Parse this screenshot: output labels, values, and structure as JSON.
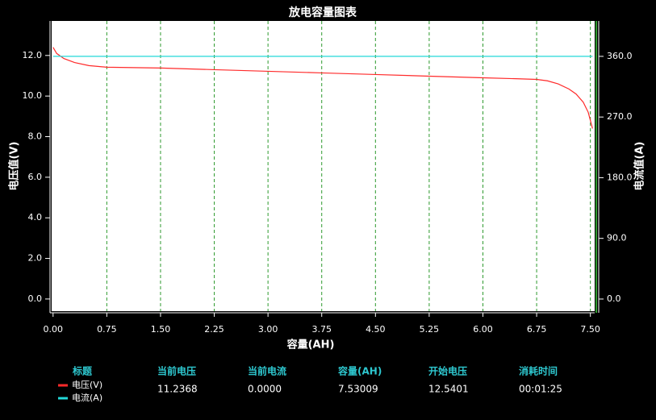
{
  "chart_data": {
    "type": "line",
    "title": "放电容量图表",
    "x_label": "容量(AH)",
    "y_label": "电压值(V)",
    "y2_label": "电流值(A)",
    "xlim": [
      -0.02,
      7.56
    ],
    "ylim": [
      -0.6,
      13.7
    ],
    "y2lim": [
      -18,
      412.5
    ],
    "xticks": [
      {
        "value": 0,
        "label": "0.00"
      },
      {
        "value": 0.75,
        "label": "0.75"
      },
      {
        "value": 1.5,
        "label": "1.50"
      },
      {
        "value": 2.25,
        "label": "2.25"
      },
      {
        "value": 3,
        "label": "3.00"
      },
      {
        "value": 3.75,
        "label": "3.75"
      },
      {
        "value": 4.5,
        "label": "4.50"
      },
      {
        "value": 5.25,
        "label": "5.25"
      },
      {
        "value": 6,
        "label": "6.00"
      },
      {
        "value": 6.75,
        "label": "6.75"
      },
      {
        "value": 7.5,
        "label": "7.50"
      }
    ],
    "yticks": [
      {
        "value": 0,
        "label": "0.0"
      },
      {
        "value": 2,
        "label": "2.0"
      },
      {
        "value": 4,
        "label": "4.0"
      },
      {
        "value": 6,
        "label": "6.0"
      },
      {
        "value": 8,
        "label": "8.0"
      },
      {
        "value": 10,
        "label": "10.0"
      },
      {
        "value": 12,
        "label": "12.0"
      }
    ],
    "y2ticks": [
      {
        "value": 0,
        "label": "0.0"
      },
      {
        "value": 90,
        "label": "90.0"
      },
      {
        "value": 180,
        "label": "180.0"
      },
      {
        "value": 270,
        "label": "270.0"
      },
      {
        "value": 360,
        "label": "360.0"
      }
    ],
    "grid": true,
    "grid_color": "#2e9a2e",
    "series": [
      {
        "name": "电压(V)",
        "color": "#ff2a2a",
        "x": [
          0,
          0.05,
          0.15,
          0.3,
          0.5,
          0.75,
          1.5,
          2.25,
          3.0,
          3.75,
          4.5,
          5.25,
          6.0,
          6.5,
          6.75,
          6.9,
          7.05,
          7.2,
          7.3,
          7.4,
          7.47,
          7.53
        ],
        "values": [
          12.4,
          12.1,
          11.85,
          11.65,
          11.5,
          11.42,
          11.38,
          11.3,
          11.22,
          11.14,
          11.06,
          10.98,
          10.9,
          10.85,
          10.82,
          10.75,
          10.6,
          10.35,
          10.1,
          9.7,
          9.2,
          8.4
        ]
      },
      {
        "name": "电流(A)",
        "color": "#22d8d8",
        "axis": "y2",
        "x": [
          0,
          7.53
        ],
        "values": [
          360,
          360
        ]
      }
    ]
  },
  "info": {
    "legend_title": "标题",
    "columns": [
      {
        "label": "当前电压",
        "value": "11.2368"
      },
      {
        "label": "当前电流",
        "value": "0.0000"
      },
      {
        "label": "容量(AH)",
        "value": "7.53009"
      },
      {
        "label": "开始电压",
        "value": "12.5401"
      },
      {
        "label": "消耗时间",
        "value": "00:01:25"
      }
    ]
  }
}
